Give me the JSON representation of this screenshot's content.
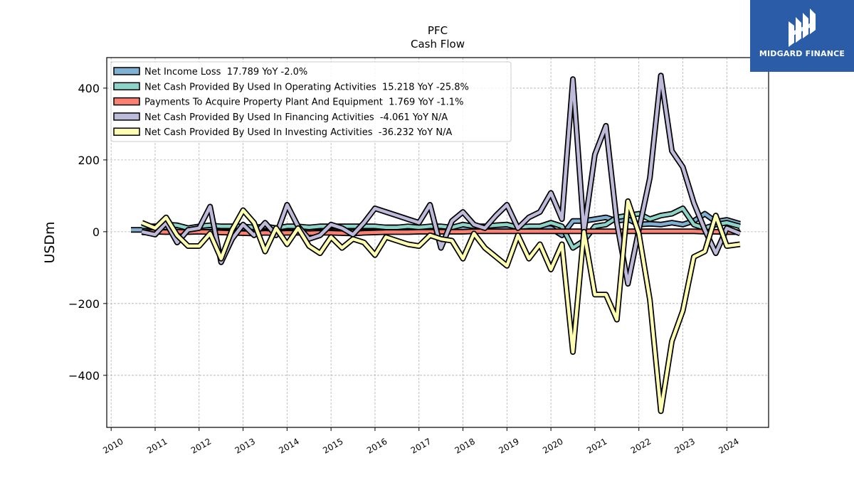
{
  "brand": {
    "name": "MIDGARD FINANCE",
    "color": "#2a5ca8"
  },
  "chart_data": {
    "type": "line",
    "title": "PFC",
    "subtitle": "Cash Flow",
    "xlabel": "",
    "ylabel": "USDm",
    "xlim": [
      2009.9,
      2024.95
    ],
    "ylim": [
      -545,
      485
    ],
    "y_ticks": [
      -400,
      -200,
      0,
      200,
      400
    ],
    "x_ticks": [
      2010,
      2011,
      2012,
      2013,
      2014,
      2015,
      2016,
      2017,
      2018,
      2019,
      2020,
      2021,
      2022,
      2023,
      2024
    ],
    "grid": true,
    "legend_position": "top-left",
    "series": [
      {
        "name": "Net Income Loss  17.789 YoY -2.0%",
        "color": "#80b1d3",
        "points": [
          [
            2010.45,
            5
          ],
          [
            2010.7,
            5
          ],
          [
            2011.0,
            10
          ],
          [
            2011.25,
            12
          ],
          [
            2011.5,
            10
          ],
          [
            2011.75,
            8
          ],
          [
            2012.0,
            12
          ],
          [
            2012.25,
            12
          ],
          [
            2012.5,
            12
          ],
          [
            2012.75,
            12
          ],
          [
            2013.0,
            10
          ],
          [
            2013.25,
            8
          ],
          [
            2013.5,
            12
          ],
          [
            2013.75,
            10
          ],
          [
            2014.0,
            12
          ],
          [
            2014.25,
            12
          ],
          [
            2014.5,
            12
          ],
          [
            2014.75,
            12
          ],
          [
            2015.0,
            12
          ],
          [
            2015.25,
            10
          ],
          [
            2015.5,
            12
          ],
          [
            2015.75,
            12
          ],
          [
            2016.0,
            12
          ],
          [
            2016.25,
            12
          ],
          [
            2016.5,
            12
          ],
          [
            2016.75,
            12
          ],
          [
            2017.0,
            12
          ],
          [
            2017.25,
            12
          ],
          [
            2017.5,
            12
          ],
          [
            2017.75,
            10
          ],
          [
            2018.0,
            12
          ],
          [
            2018.25,
            12
          ],
          [
            2018.5,
            12
          ],
          [
            2018.75,
            12
          ],
          [
            2019.0,
            12
          ],
          [
            2019.25,
            10
          ],
          [
            2019.5,
            12
          ],
          [
            2019.75,
            12
          ],
          [
            2020.0,
            10
          ],
          [
            2020.25,
            -10
          ],
          [
            2020.5,
            30
          ],
          [
            2020.75,
            30
          ],
          [
            2021.0,
            35
          ],
          [
            2021.25,
            40
          ],
          [
            2021.5,
            30
          ],
          [
            2021.75,
            35
          ],
          [
            2022.0,
            20
          ],
          [
            2022.25,
            22
          ],
          [
            2022.5,
            20
          ],
          [
            2022.75,
            25
          ],
          [
            2023.0,
            20
          ],
          [
            2023.25,
            30
          ],
          [
            2023.5,
            50
          ],
          [
            2023.75,
            28
          ],
          [
            2024.0,
            33
          ],
          [
            2024.3,
            22
          ]
        ]
      },
      {
        "name": "Net Cash Provided By Used In Operating Activities  15.218 YoY -25.8%",
        "color": "#8dd3c7",
        "points": [
          [
            2010.7,
            15
          ],
          [
            2011.0,
            15
          ],
          [
            2011.25,
            20
          ],
          [
            2011.5,
            18
          ],
          [
            2011.75,
            10
          ],
          [
            2012.0,
            15
          ],
          [
            2012.25,
            18
          ],
          [
            2012.5,
            15
          ],
          [
            2012.75,
            15
          ],
          [
            2013.0,
            15
          ],
          [
            2013.25,
            12
          ],
          [
            2013.5,
            15
          ],
          [
            2013.75,
            10
          ],
          [
            2014.0,
            15
          ],
          [
            2014.25,
            15
          ],
          [
            2014.5,
            12
          ],
          [
            2014.75,
            15
          ],
          [
            2015.0,
            15
          ],
          [
            2015.25,
            15
          ],
          [
            2015.5,
            15
          ],
          [
            2015.75,
            15
          ],
          [
            2016.0,
            15
          ],
          [
            2016.25,
            12
          ],
          [
            2016.5,
            12
          ],
          [
            2016.75,
            15
          ],
          [
            2017.0,
            12
          ],
          [
            2017.25,
            15
          ],
          [
            2017.5,
            15
          ],
          [
            2017.75,
            12
          ],
          [
            2018.0,
            20
          ],
          [
            2018.25,
            15
          ],
          [
            2018.5,
            15
          ],
          [
            2018.75,
            18
          ],
          [
            2019.0,
            20
          ],
          [
            2019.25,
            12
          ],
          [
            2019.5,
            15
          ],
          [
            2019.75,
            15
          ],
          [
            2020.0,
            25
          ],
          [
            2020.25,
            15
          ],
          [
            2020.5,
            -45
          ],
          [
            2020.75,
            -25
          ],
          [
            2021.0,
            15
          ],
          [
            2021.25,
            20
          ],
          [
            2021.5,
            40
          ],
          [
            2021.75,
            45
          ],
          [
            2022.0,
            50
          ],
          [
            2022.25,
            35
          ],
          [
            2022.5,
            45
          ],
          [
            2022.75,
            50
          ],
          [
            2023.0,
            65
          ],
          [
            2023.25,
            20
          ],
          [
            2023.5,
            10
          ],
          [
            2023.75,
            20
          ],
          [
            2024.0,
            25
          ],
          [
            2024.3,
            15
          ]
        ]
      },
      {
        "name": "Payments To Acquire Property Plant And Equipment  1.769 YoY -1.1%",
        "color": "#fb8072",
        "points": [
          [
            2010.7,
            -2
          ],
          [
            2011.0,
            0
          ],
          [
            2011.25,
            -1
          ],
          [
            2011.5,
            0
          ],
          [
            2011.75,
            -1
          ],
          [
            2012.0,
            0
          ],
          [
            2012.25,
            -1
          ],
          [
            2012.5,
            -2
          ],
          [
            2012.75,
            -3
          ],
          [
            2013.0,
            -4
          ],
          [
            2013.25,
            -5
          ],
          [
            2013.5,
            -3
          ],
          [
            2013.75,
            -4
          ],
          [
            2014.0,
            -3
          ],
          [
            2014.25,
            -3
          ],
          [
            2014.5,
            -4
          ],
          [
            2014.75,
            -3
          ],
          [
            2015.0,
            -3
          ],
          [
            2015.25,
            -4
          ],
          [
            2015.5,
            -5
          ],
          [
            2015.75,
            -3
          ],
          [
            2016.0,
            -2
          ],
          [
            2016.25,
            -1
          ],
          [
            2016.5,
            -1
          ],
          [
            2016.75,
            -1
          ],
          [
            2017.0,
            0
          ],
          [
            2017.25,
            0
          ],
          [
            2017.5,
            0
          ],
          [
            2017.75,
            0
          ],
          [
            2018.0,
            0
          ],
          [
            2018.25,
            1
          ],
          [
            2018.5,
            1
          ],
          [
            2018.75,
            1
          ],
          [
            2019.0,
            1
          ],
          [
            2019.25,
            1
          ],
          [
            2019.5,
            1
          ],
          [
            2019.75,
            1
          ],
          [
            2020.0,
            1
          ],
          [
            2020.25,
            1
          ],
          [
            2020.5,
            1
          ],
          [
            2020.75,
            1
          ],
          [
            2021.0,
            1
          ],
          [
            2021.25,
            1
          ],
          [
            2021.5,
            1
          ],
          [
            2021.75,
            1
          ],
          [
            2022.0,
            1
          ],
          [
            2022.25,
            1
          ],
          [
            2022.5,
            1
          ],
          [
            2022.75,
            1
          ],
          [
            2023.0,
            1
          ],
          [
            2023.25,
            1
          ],
          [
            2023.5,
            0
          ],
          [
            2023.75,
            0
          ],
          [
            2024.0,
            -1
          ],
          [
            2024.3,
            -1
          ]
        ]
      },
      {
        "name": "Net Cash Provided By Used In Financing Activities  -4.061 YoY N/A",
        "color": "#bebada",
        "points": [
          [
            2010.7,
            0
          ],
          [
            2011.0,
            -8
          ],
          [
            2011.25,
            25
          ],
          [
            2011.5,
            -30
          ],
          [
            2011.75,
            5
          ],
          [
            2012.0,
            10
          ],
          [
            2012.25,
            70
          ],
          [
            2012.5,
            -85
          ],
          [
            2012.75,
            -20
          ],
          [
            2013.0,
            20
          ],
          [
            2013.25,
            -10
          ],
          [
            2013.5,
            25
          ],
          [
            2013.75,
            -10
          ],
          [
            2014.0,
            75
          ],
          [
            2014.25,
            15
          ],
          [
            2014.5,
            -20
          ],
          [
            2014.75,
            -10
          ],
          [
            2015.0,
            20
          ],
          [
            2015.25,
            10
          ],
          [
            2015.5,
            -8
          ],
          [
            2015.75,
            25
          ],
          [
            2016.0,
            65
          ],
          [
            2016.25,
            55
          ],
          [
            2016.5,
            45
          ],
          [
            2016.75,
            35
          ],
          [
            2017.0,
            25
          ],
          [
            2017.25,
            75
          ],
          [
            2017.5,
            -45
          ],
          [
            2017.75,
            30
          ],
          [
            2018.0,
            55
          ],
          [
            2018.25,
            20
          ],
          [
            2018.5,
            10
          ],
          [
            2018.75,
            45
          ],
          [
            2019.0,
            75
          ],
          [
            2019.25,
            10
          ],
          [
            2019.5,
            40
          ],
          [
            2019.75,
            55
          ],
          [
            2020.0,
            108
          ],
          [
            2020.25,
            35
          ],
          [
            2020.5,
            425
          ],
          [
            2020.75,
            0
          ],
          [
            2021.0,
            215
          ],
          [
            2021.25,
            295
          ],
          [
            2021.5,
            25
          ],
          [
            2021.75,
            -145
          ],
          [
            2022.0,
            5
          ],
          [
            2022.25,
            150
          ],
          [
            2022.5,
            435
          ],
          [
            2022.75,
            225
          ],
          [
            2023.0,
            180
          ],
          [
            2023.25,
            80
          ],
          [
            2023.5,
            5
          ],
          [
            2023.75,
            -60
          ],
          [
            2024.0,
            10
          ],
          [
            2024.3,
            -5
          ]
        ]
      },
      {
        "name": "Net Cash Provided By Used In Investing Activities  -36.232 YoY N/A",
        "color": "#ffffb3",
        "points": [
          [
            2010.7,
            25
          ],
          [
            2011.0,
            10
          ],
          [
            2011.25,
            40
          ],
          [
            2011.5,
            -10
          ],
          [
            2011.75,
            -40
          ],
          [
            2012.0,
            -40
          ],
          [
            2012.25,
            -5
          ],
          [
            2012.5,
            -75
          ],
          [
            2012.75,
            5
          ],
          [
            2013.0,
            60
          ],
          [
            2013.25,
            25
          ],
          [
            2013.5,
            -55
          ],
          [
            2013.75,
            10
          ],
          [
            2014.0,
            -35
          ],
          [
            2014.25,
            10
          ],
          [
            2014.5,
            -40
          ],
          [
            2014.75,
            -60
          ],
          [
            2015.0,
            -15
          ],
          [
            2015.25,
            -45
          ],
          [
            2015.5,
            -20
          ],
          [
            2015.75,
            -30
          ],
          [
            2016.0,
            -65
          ],
          [
            2016.25,
            -15
          ],
          [
            2016.5,
            -25
          ],
          [
            2016.75,
            -35
          ],
          [
            2017.0,
            -40
          ],
          [
            2017.25,
            -10
          ],
          [
            2017.5,
            -20
          ],
          [
            2017.75,
            -25
          ],
          [
            2018.0,
            -75
          ],
          [
            2018.25,
            -5
          ],
          [
            2018.5,
            -45
          ],
          [
            2018.75,
            -70
          ],
          [
            2019.0,
            -95
          ],
          [
            2019.25,
            -10
          ],
          [
            2019.5,
            -75
          ],
          [
            2019.75,
            -35
          ],
          [
            2020.0,
            -105
          ],
          [
            2020.25,
            -35
          ],
          [
            2020.5,
            -335
          ],
          [
            2020.75,
            0
          ],
          [
            2021.0,
            -175
          ],
          [
            2021.25,
            -175
          ],
          [
            2021.5,
            -245
          ],
          [
            2021.75,
            85
          ],
          [
            2022.0,
            -5
          ],
          [
            2022.25,
            -190
          ],
          [
            2022.5,
            -500
          ],
          [
            2022.75,
            -305
          ],
          [
            2023.0,
            -220
          ],
          [
            2023.25,
            -70
          ],
          [
            2023.5,
            -55
          ],
          [
            2023.75,
            45
          ],
          [
            2024.0,
            -40
          ],
          [
            2024.3,
            -35
          ]
        ]
      }
    ]
  }
}
